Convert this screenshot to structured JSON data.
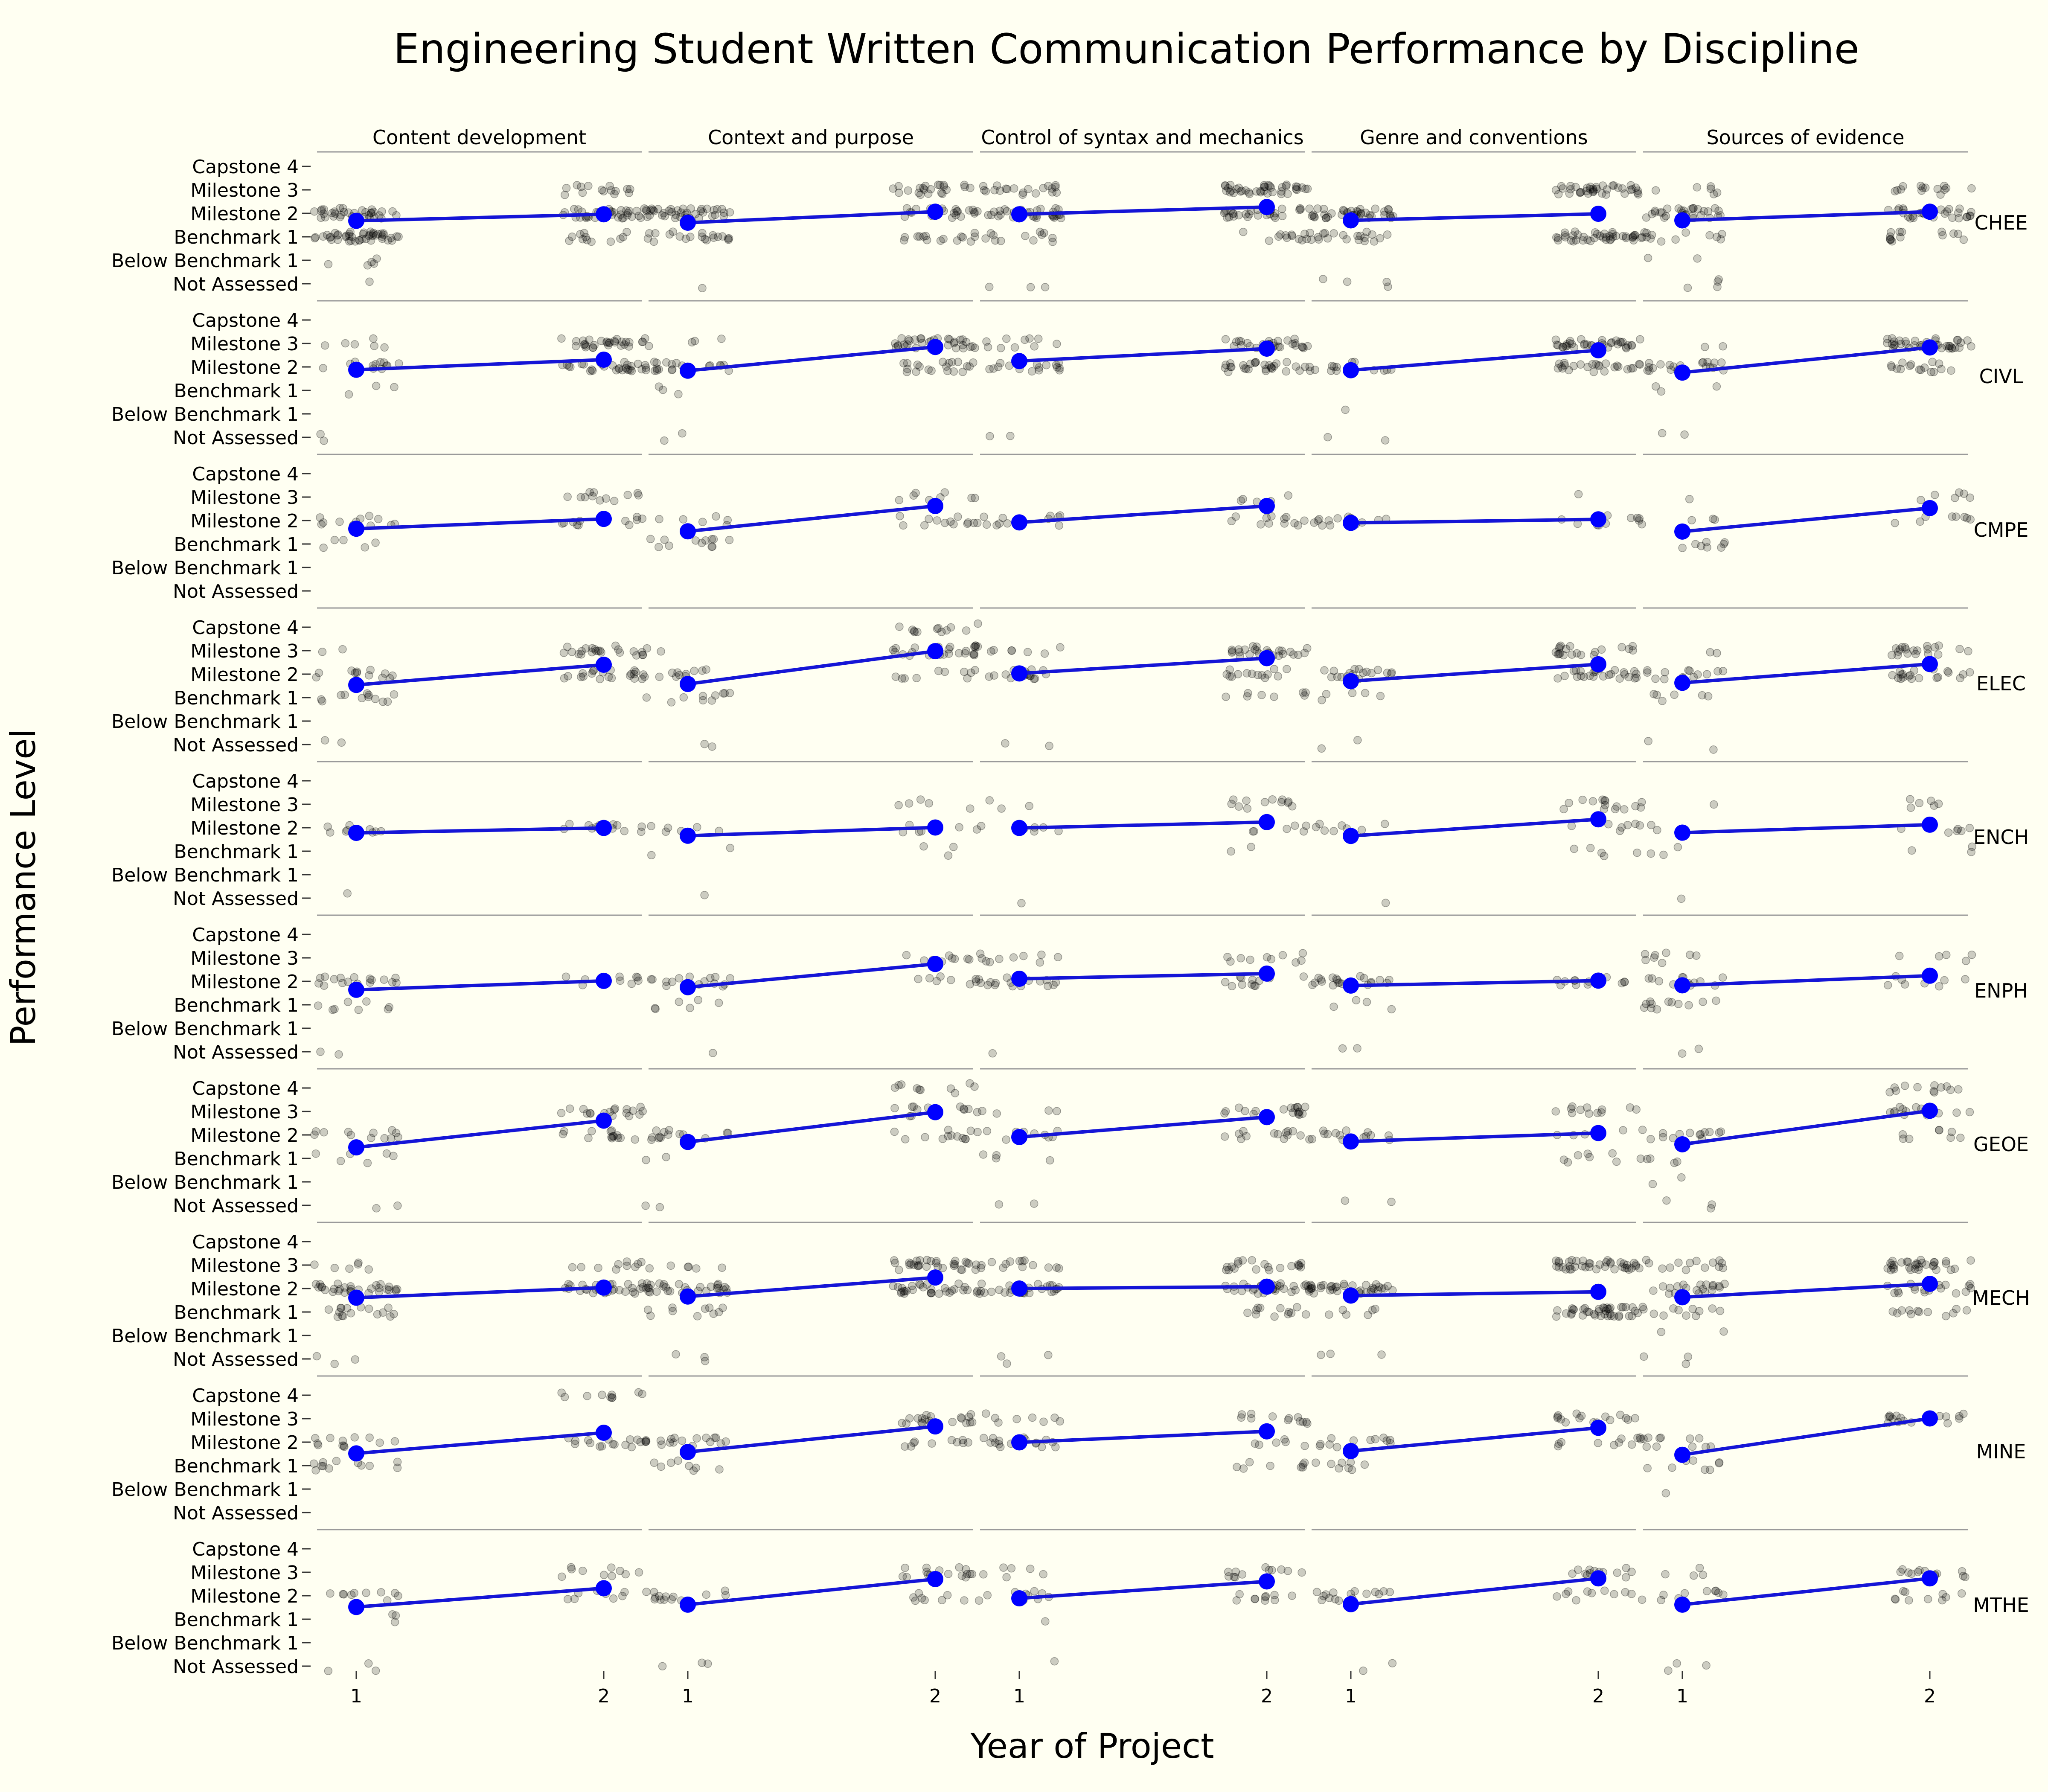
{
  "chart_data": {
    "type": "scatter",
    "title": "Engineering Student Written Communication Performance by Discipline",
    "xlabel": "Year of Project",
    "ylabel": "Performance Level",
    "x_ticks": [
      "1",
      "2"
    ],
    "y_levels": [
      "Not Assessed",
      "Below Benchmark 1",
      "Benchmark 1",
      "Milestone 2",
      "Milestone 3",
      "Capstone 4"
    ],
    "facet_columns": [
      "Content development",
      "Context and purpose",
      "Control of syntax and mechanics",
      "Genre and conventions",
      "Sources of evidence"
    ],
    "facet_rows": [
      "CHEE",
      "CIVL",
      "CMPE",
      "ELEC",
      "ENCH",
      "ENPH",
      "GEOE",
      "MECH",
      "MINE",
      "MTHE"
    ],
    "colors": {
      "mean": "#0000ff",
      "mean_line": "#1515d6",
      "points": "#000000",
      "background": "#fffff2",
      "separator": "#9a9a9a"
    },
    "mean_series": {
      "CHEE": [
        [
          2.68,
          2.96
        ],
        [
          2.6,
          3.07
        ],
        [
          2.96,
          3.27
        ],
        [
          2.7,
          2.98
        ],
        [
          2.7,
          3.07
        ]
      ],
      "CIVL": [
        [
          2.88,
          3.31
        ],
        [
          2.84,
          3.85
        ],
        [
          3.25,
          3.78
        ],
        [
          2.86,
          3.71
        ],
        [
          2.76,
          3.83
        ]
      ],
      "CMPE": [
        [
          2.65,
          3.07
        ],
        [
          2.54,
          3.62
        ],
        [
          2.92,
          3.62
        ],
        [
          2.9,
          3.05
        ],
        [
          2.53,
          3.53
        ]
      ],
      "ELEC": [
        [
          2.54,
          3.4
        ],
        [
          2.58,
          3.98
        ],
        [
          3.03,
          3.68
        ],
        [
          2.7,
          3.42
        ],
        [
          2.63,
          3.43
        ]
      ],
      "ENCH": [
        [
          2.78,
          2.99
        ],
        [
          2.66,
          3.01
        ],
        [
          2.99,
          3.24
        ],
        [
          2.65,
          3.36
        ],
        [
          2.79,
          3.13
        ]
      ],
      "ENPH": [
        [
          2.64,
          3.02
        ],
        [
          2.75,
          3.74
        ],
        [
          3.11,
          3.33
        ],
        [
          2.82,
          3.03
        ],
        [
          2.83,
          3.24
        ]
      ],
      "GEOE": [
        [
          2.47,
          3.61
        ],
        [
          2.7,
          3.97
        ],
        [
          2.91,
          3.76
        ],
        [
          2.72,
          3.08
        ],
        [
          2.6,
          4.03
        ]
      ],
      "MECH": [
        [
          2.61,
          3.04
        ],
        [
          2.66,
          3.47
        ],
        [
          3.0,
          3.08
        ],
        [
          2.7,
          2.86
        ],
        [
          2.63,
          3.2
        ]
      ],
      "MINE": [
        [
          2.52,
          3.4
        ],
        [
          2.58,
          3.67
        ],
        [
          2.99,
          3.46
        ],
        [
          2.62,
          3.61
        ],
        [
          2.46,
          4.01
        ]
      ],
      "MTHE": [
        [
          2.52,
          3.32
        ],
        [
          2.62,
          3.71
        ],
        [
          2.89,
          3.61
        ],
        [
          2.64,
          3.74
        ],
        [
          2.62,
          3.74
        ]
      ]
    },
    "individual_points_distribution": {
      "CHEE": [
        [
          [
            1,
            5,
            45,
            35,
            0,
            0
          ],
          [
            0,
            0,
            12,
            35,
            15,
            0
          ]
        ],
        [
          [
            1,
            0,
            20,
            40,
            0,
            0
          ],
          [
            0,
            0,
            15,
            20,
            22,
            0
          ]
        ],
        [
          [
            3,
            0,
            12,
            35,
            20,
            0
          ],
          [
            0,
            0,
            12,
            30,
            40,
            0
          ]
        ],
        [
          [
            4,
            0,
            20,
            40,
            0,
            0
          ],
          [
            0,
            0,
            40,
            0,
            38,
            0
          ]
        ],
        [
          [
            4,
            2,
            14,
            30,
            6,
            0
          ],
          [
            0,
            0,
            14,
            28,
            14,
            0
          ]
        ]
      ],
      "CIVL": [
        [
          [
            2,
            0,
            3,
            12,
            6,
            0
          ],
          [
            0,
            0,
            0,
            30,
            30,
            0
          ]
        ],
        [
          [
            2,
            0,
            3,
            18,
            4,
            0
          ],
          [
            0,
            0,
            0,
            20,
            35,
            0
          ]
        ],
        [
          [
            2,
            0,
            0,
            16,
            10,
            0
          ],
          [
            0,
            0,
            0,
            28,
            30,
            0
          ]
        ],
        [
          [
            2,
            1,
            0,
            14,
            0,
            0
          ],
          [
            0,
            0,
            0,
            25,
            35,
            0
          ]
        ],
        [
          [
            2,
            0,
            3,
            20,
            2,
            0
          ],
          [
            0,
            0,
            0,
            16,
            40,
            0
          ]
        ]
      ],
      "CMPE": [
        [
          [
            0,
            0,
            5,
            12,
            0,
            0
          ],
          [
            0,
            0,
            0,
            12,
            12,
            0
          ]
        ],
        [
          [
            0,
            0,
            12,
            6,
            0,
            0
          ],
          [
            0,
            0,
            0,
            12,
            8,
            0
          ]
        ],
        [
          [
            0,
            0,
            0,
            12,
            0,
            0
          ],
          [
            0,
            0,
            0,
            12,
            5,
            0
          ]
        ],
        [
          [
            0,
            0,
            0,
            16,
            0,
            0
          ],
          [
            0,
            0,
            0,
            10,
            1,
            0
          ]
        ],
        [
          [
            0,
            0,
            8,
            4,
            1,
            0
          ],
          [
            0,
            0,
            0,
            8,
            6,
            0
          ]
        ]
      ],
      "ELEC": [
        [
          [
            2,
            0,
            12,
            12,
            2,
            0
          ],
          [
            0,
            0,
            0,
            22,
            22,
            0
          ]
        ],
        [
          [
            2,
            0,
            10,
            10,
            2,
            0
          ],
          [
            0,
            0,
            0,
            10,
            26,
            12
          ]
        ],
        [
          [
            2,
            0,
            0,
            16,
            8,
            0
          ],
          [
            0,
            0,
            8,
            14,
            26,
            0
          ]
        ],
        [
          [
            2,
            0,
            5,
            20,
            0,
            0
          ],
          [
            0,
            0,
            0,
            26,
            20,
            0
          ]
        ],
        [
          [
            2,
            0,
            6,
            14,
            2,
            0
          ],
          [
            0,
            0,
            0,
            20,
            20,
            0
          ]
        ]
      ],
      "ENCH": [
        [
          [
            1,
            0,
            0,
            10,
            0,
            0
          ],
          [
            0,
            0,
            0,
            12,
            0,
            0
          ]
        ],
        [
          [
            1,
            0,
            2,
            6,
            0,
            0
          ],
          [
            0,
            0,
            3,
            6,
            5,
            0
          ]
        ],
        [
          [
            1,
            0,
            0,
            9,
            3,
            0
          ],
          [
            0,
            0,
            2,
            6,
            12,
            0
          ]
        ],
        [
          [
            1,
            0,
            0,
            9,
            0,
            0
          ],
          [
            0,
            0,
            5,
            6,
            14,
            0
          ]
        ],
        [
          [
            1,
            0,
            3,
            3,
            2,
            0
          ],
          [
            0,
            0,
            3,
            6,
            6,
            0
          ]
        ]
      ],
      "ENPH": [
        [
          [
            2,
            0,
            8,
            18,
            0,
            0
          ],
          [
            0,
            0,
            0,
            10,
            0,
            0
          ]
        ],
        [
          [
            1,
            0,
            6,
            16,
            0,
            0
          ],
          [
            0,
            0,
            0,
            8,
            10,
            0
          ]
        ],
        [
          [
            1,
            0,
            0,
            18,
            10,
            0
          ],
          [
            0,
            0,
            0,
            12,
            10,
            0
          ]
        ],
        [
          [
            2,
            0,
            4,
            20,
            0,
            0
          ],
          [
            0,
            0,
            0,
            12,
            0,
            0
          ]
        ],
        [
          [
            2,
            0,
            12,
            12,
            8,
            0
          ],
          [
            0,
            0,
            0,
            8,
            5,
            0
          ]
        ]
      ],
      "GEOE": [
        [
          [
            2,
            0,
            6,
            12,
            0,
            0
          ],
          [
            0,
            0,
            0,
            14,
            18,
            0
          ]
        ],
        [
          [
            2,
            0,
            2,
            14,
            0,
            0
          ],
          [
            0,
            0,
            0,
            12,
            14,
            10
          ]
        ],
        [
          [
            2,
            0,
            4,
            12,
            4,
            0
          ],
          [
            0,
            0,
            0,
            14,
            18,
            0
          ]
        ],
        [
          [
            2,
            0,
            0,
            14,
            0,
            0
          ],
          [
            0,
            0,
            8,
            6,
            12,
            0
          ]
        ],
        [
          [
            3,
            2,
            4,
            14,
            0,
            0
          ],
          [
            0,
            0,
            0,
            8,
            14,
            12
          ]
        ]
      ],
      "MECH": [
        [
          [
            3,
            0,
            16,
            30,
            6,
            0
          ],
          [
            0,
            0,
            0,
            30,
            10,
            0
          ]
        ],
        [
          [
            3,
            0,
            10,
            30,
            6,
            0
          ],
          [
            0,
            0,
            0,
            30,
            30,
            0
          ]
        ],
        [
          [
            3,
            0,
            0,
            30,
            14,
            0
          ],
          [
            0,
            0,
            12,
            30,
            20,
            0
          ]
        ],
        [
          [
            3,
            0,
            6,
            40,
            0,
            0
          ],
          [
            0,
            0,
            40,
            0,
            40,
            0
          ]
        ],
        [
          [
            3,
            2,
            12,
            20,
            14,
            0
          ],
          [
            0,
            0,
            12,
            20,
            32,
            0
          ]
        ]
      ],
      "MINE": [
        [
          [
            0,
            0,
            12,
            12,
            0,
            0
          ],
          [
            0,
            0,
            0,
            16,
            0,
            10
          ]
        ],
        [
          [
            0,
            0,
            8,
            18,
            0,
            0
          ],
          [
            0,
            0,
            0,
            10,
            20,
            0
          ]
        ],
        [
          [
            0,
            0,
            0,
            16,
            8,
            0
          ],
          [
            0,
            0,
            8,
            6,
            12,
            0
          ]
        ],
        [
          [
            0,
            0,
            8,
            12,
            0,
            0
          ],
          [
            0,
            0,
            0,
            10,
            16,
            0
          ]
        ],
        [
          [
            0,
            1,
            8,
            12,
            0,
            0
          ],
          [
            0,
            0,
            0,
            0,
            16,
            0
          ]
        ]
      ],
      "MTHE": [
        [
          [
            3,
            0,
            3,
            10,
            0,
            0
          ],
          [
            0,
            0,
            0,
            8,
            10,
            0
          ]
        ],
        [
          [
            3,
            0,
            0,
            14,
            0,
            0
          ],
          [
            0,
            0,
            0,
            8,
            16,
            0
          ]
        ],
        [
          [
            1,
            0,
            1,
            10,
            6,
            0
          ],
          [
            0,
            0,
            0,
            10,
            12,
            0
          ]
        ],
        [
          [
            2,
            0,
            0,
            16,
            0,
            0
          ],
          [
            0,
            0,
            0,
            10,
            14,
            0
          ]
        ],
        [
          [
            3,
            0,
            0,
            10,
            4,
            0
          ],
          [
            0,
            0,
            0,
            10,
            14,
            0
          ]
        ]
      ]
    }
  }
}
